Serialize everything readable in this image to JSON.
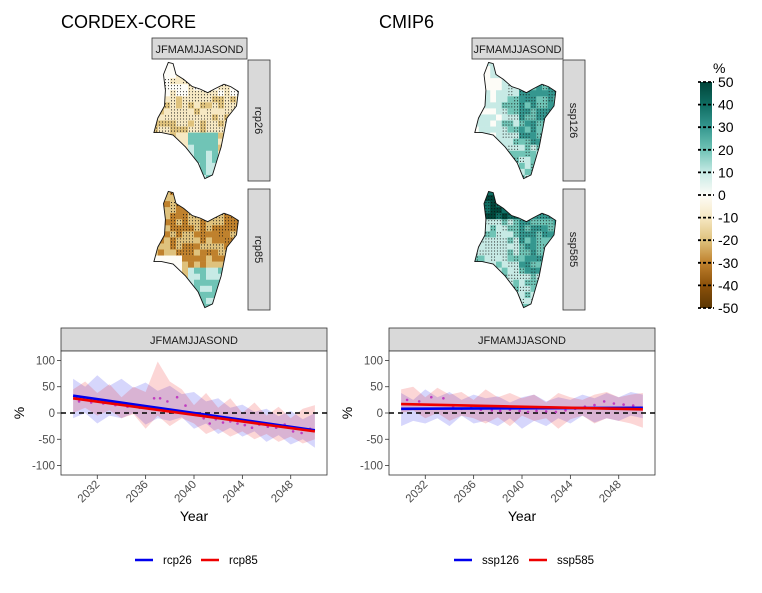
{
  "panel_titles": {
    "left": "CORDEX-CORE",
    "right": "CMIP6"
  },
  "map_panels": {
    "season_label": "JFMAMJJASOND",
    "cordex_scenarios": [
      "rcp26",
      "rcp85"
    ],
    "cmip6_scenarios": [
      "ssp126",
      "ssp585"
    ]
  },
  "colorbar": {
    "title": "%",
    "ticks": [
      "50",
      "40",
      "30",
      "20",
      "10",
      "0",
      "-10",
      "-20",
      "-30",
      "-40",
      "-50"
    ],
    "tick_values": [
      50,
      40,
      30,
      20,
      10,
      0,
      -10,
      -20,
      -30,
      -40,
      -50
    ],
    "colors_top_to_bottom": [
      "#01453a",
      "#0f6d62",
      "#35978f",
      "#70c4b6",
      "#c7eae5",
      "#fdfcf7",
      "#f6e8c3",
      "#dfc27d",
      "#bf812d",
      "#8c510a",
      "#5b3704"
    ]
  },
  "chart_data": [
    {
      "type": "line",
      "title": "CORDEX-CORE",
      "facet": "JFMAMJJASOND",
      "xlabel": "Year",
      "ylabel": "%",
      "xlim": [
        2029,
        2051
      ],
      "ylim": [
        -118,
        118
      ],
      "x_ticks": [
        2032,
        2036,
        2040,
        2044,
        2048
      ],
      "x_tick_labels": [
        "2032",
        "2036",
        "2040",
        "2044",
        "2048"
      ],
      "y_ticks": [
        100,
        50,
        0,
        -50,
        -100
      ],
      "y_tick_labels": [
        "100",
        "50",
        "0",
        "-50",
        "-100"
      ],
      "reference_line_y": 0,
      "legend_position": "bottom",
      "series": [
        {
          "name": "rcp26",
          "color": "#0000ee",
          "trend": [
            [
              2030,
              33
            ],
            [
              2050,
              -33
            ]
          ],
          "band_upper": [
            [
              2030,
              65
            ],
            [
              2031,
              50
            ],
            [
              2032,
              72
            ],
            [
              2033,
              52
            ],
            [
              2034,
              65
            ],
            [
              2035,
              48
            ],
            [
              2036,
              58
            ],
            [
              2037,
              42
            ],
            [
              2038,
              52
            ],
            [
              2039,
              36
            ],
            [
              2040,
              40
            ],
            [
              2041,
              22
            ],
            [
              2042,
              28
            ],
            [
              2043,
              10
            ],
            [
              2044,
              16
            ],
            [
              2045,
              2
            ],
            [
              2046,
              8
            ],
            [
              2047,
              -6
            ],
            [
              2048,
              4
            ],
            [
              2049,
              -12
            ],
            [
              2050,
              0
            ]
          ],
          "band_lower": [
            [
              2030,
              -10
            ],
            [
              2031,
              0
            ],
            [
              2032,
              -20
            ],
            [
              2033,
              -5
            ],
            [
              2034,
              -10
            ],
            [
              2035,
              0
            ],
            [
              2036,
              -22
            ],
            [
              2037,
              -10
            ],
            [
              2038,
              -15
            ],
            [
              2039,
              -8
            ],
            [
              2040,
              -30
            ],
            [
              2041,
              -20
            ],
            [
              2042,
              -40
            ],
            [
              2043,
              -28
            ],
            [
              2044,
              -45
            ],
            [
              2045,
              -35
            ],
            [
              2046,
              -55
            ],
            [
              2047,
              -42
            ],
            [
              2048,
              -60
            ],
            [
              2049,
              -50
            ],
            [
              2050,
              -66
            ]
          ]
        },
        {
          "name": "rcp85",
          "color": "#ee0000",
          "trend": [
            [
              2030,
              28
            ],
            [
              2050,
              -35
            ]
          ],
          "band_upper": [
            [
              2030,
              45
            ],
            [
              2031,
              60
            ],
            [
              2032,
              38
            ],
            [
              2033,
              55
            ],
            [
              2034,
              30
            ],
            [
              2035,
              50
            ],
            [
              2036,
              40
            ],
            [
              2037,
              98
            ],
            [
              2038,
              60
            ],
            [
              2039,
              45
            ],
            [
              2040,
              15
            ],
            [
              2041,
              38
            ],
            [
              2042,
              10
            ],
            [
              2043,
              28
            ],
            [
              2044,
              0
            ],
            [
              2045,
              20
            ],
            [
              2046,
              -5
            ],
            [
              2047,
              12
            ],
            [
              2048,
              -10
            ],
            [
              2049,
              8
            ],
            [
              2050,
              15
            ]
          ],
          "band_lower": [
            [
              2030,
              0
            ],
            [
              2031,
              10
            ],
            [
              2032,
              -5
            ],
            [
              2033,
              5
            ],
            [
              2034,
              -10
            ],
            [
              2035,
              -2
            ],
            [
              2036,
              -30
            ],
            [
              2037,
              -5
            ],
            [
              2038,
              -25
            ],
            [
              2039,
              -10
            ],
            [
              2040,
              -20
            ],
            [
              2041,
              -40
            ],
            [
              2042,
              -30
            ],
            [
              2043,
              -45
            ],
            [
              2044,
              -35
            ],
            [
              2045,
              -50
            ],
            [
              2046,
              -40
            ],
            [
              2047,
              -55
            ],
            [
              2048,
              -45
            ],
            [
              2049,
              -58
            ],
            [
              2050,
              -50
            ]
          ]
        }
      ],
      "points": [
        [
          2030.5,
          22
        ],
        [
          2031.5,
          20
        ],
        [
          2032.5,
          18
        ],
        [
          2033.5,
          15
        ],
        [
          2034.5,
          12
        ],
        [
          2035.5,
          10
        ],
        [
          2036.7,
          28
        ],
        [
          2037.2,
          28
        ],
        [
          2037.8,
          22
        ],
        [
          2038.6,
          30
        ],
        [
          2039.3,
          14
        ],
        [
          2040.2,
          -3
        ],
        [
          2040.8,
          -10
        ],
        [
          2041.3,
          -20
        ],
        [
          2041.8,
          -12
        ],
        [
          2042.4,
          -18
        ],
        [
          2043.0,
          -16
        ],
        [
          2043.6,
          -20
        ],
        [
          2044.2,
          -23
        ],
        [
          2044.8,
          -28
        ],
        [
          2045.4,
          -22
        ],
        [
          2046.1,
          -26
        ],
        [
          2046.8,
          -28
        ],
        [
          2047.5,
          -22
        ],
        [
          2048.2,
          -35
        ],
        [
          2048.9,
          -38
        ],
        [
          2049.6,
          -30
        ]
      ]
    },
    {
      "type": "line",
      "title": "CMIP6",
      "facet": "JFMAMJJASOND",
      "xlabel": "Year",
      "ylabel": "%",
      "xlim": [
        2029,
        2051
      ],
      "ylim": [
        -118,
        118
      ],
      "x_ticks": [
        2032,
        2036,
        2040,
        2044,
        2048
      ],
      "x_tick_labels": [
        "2032",
        "2036",
        "2040",
        "2044",
        "2048"
      ],
      "y_ticks": [
        100,
        50,
        0,
        -50,
        -100
      ],
      "y_tick_labels": [
        "100",
        "50",
        "0",
        "-50",
        "-100"
      ],
      "reference_line_y": 0,
      "legend_position": "bottom",
      "series": [
        {
          "name": "ssp126",
          "color": "#0000ee",
          "trend": [
            [
              2030,
              8
            ],
            [
              2050,
              10
            ]
          ],
          "band_upper": [
            [
              2030,
              38
            ],
            [
              2031,
              25
            ],
            [
              2032,
              45
            ],
            [
              2033,
              30
            ],
            [
              2034,
              40
            ],
            [
              2035,
              25
            ],
            [
              2036,
              35
            ],
            [
              2037,
              28
            ],
            [
              2038,
              32
            ],
            [
              2039,
              20
            ],
            [
              2040,
              30
            ],
            [
              2041,
              35
            ],
            [
              2042,
              22
            ],
            [
              2043,
              30
            ],
            [
              2044,
              25
            ],
            [
              2045,
              35
            ],
            [
              2046,
              28
            ],
            [
              2047,
              38
            ],
            [
              2048,
              30
            ],
            [
              2049,
              40
            ],
            [
              2050,
              35
            ]
          ],
          "band_lower": [
            [
              2030,
              -25
            ],
            [
              2031,
              -15
            ],
            [
              2032,
              -20
            ],
            [
              2033,
              -10
            ],
            [
              2034,
              -25
            ],
            [
              2035,
              -5
            ],
            [
              2036,
              -20
            ],
            [
              2037,
              -15
            ],
            [
              2038,
              -25
            ],
            [
              2039,
              -10
            ],
            [
              2040,
              -30
            ],
            [
              2041,
              -15
            ],
            [
              2042,
              -25
            ],
            [
              2043,
              -10
            ],
            [
              2044,
              -20
            ],
            [
              2045,
              -5
            ],
            [
              2046,
              -18
            ],
            [
              2047,
              -10
            ],
            [
              2048,
              -15
            ],
            [
              2049,
              -5
            ],
            [
              2050,
              -10
            ]
          ]
        },
        {
          "name": "ssp585",
          "color": "#ee0000",
          "trend": [
            [
              2030,
              17
            ],
            [
              2050,
              7
            ]
          ],
          "band_upper": [
            [
              2030,
              45
            ],
            [
              2031,
              50
            ],
            [
              2032,
              30
            ],
            [
              2033,
              48
            ],
            [
              2034,
              35
            ],
            [
              2035,
              40
            ],
            [
              2036,
              25
            ],
            [
              2037,
              45
            ],
            [
              2038,
              30
            ],
            [
              2039,
              38
            ],
            [
              2040,
              28
            ],
            [
              2041,
              35
            ],
            [
              2042,
              20
            ],
            [
              2043,
              38
            ],
            [
              2044,
              30
            ],
            [
              2045,
              25
            ],
            [
              2046,
              35
            ],
            [
              2047,
              40
            ],
            [
              2048,
              30
            ],
            [
              2049,
              35
            ],
            [
              2050,
              38
            ]
          ],
          "band_lower": [
            [
              2030,
              0
            ],
            [
              2031,
              5
            ],
            [
              2032,
              -10
            ],
            [
              2033,
              0
            ],
            [
              2034,
              -15
            ],
            [
              2035,
              -5
            ],
            [
              2036,
              -10
            ],
            [
              2037,
              -20
            ],
            [
              2038,
              -8
            ],
            [
              2039,
              -25
            ],
            [
              2040,
              -5
            ],
            [
              2041,
              -15
            ],
            [
              2042,
              -10
            ],
            [
              2043,
              -30
            ],
            [
              2044,
              -12
            ],
            [
              2045,
              -5
            ],
            [
              2046,
              -20
            ],
            [
              2047,
              -10
            ],
            [
              2048,
              -15
            ],
            [
              2049,
              -20
            ],
            [
              2050,
              -28
            ]
          ]
        }
      ],
      "points": [
        [
          2030.5,
          25
        ],
        [
          2031.5,
          22
        ],
        [
          2032.5,
          30
        ],
        [
          2033.5,
          28
        ],
        [
          2034.3,
          12
        ],
        [
          2035.0,
          8
        ],
        [
          2035.8,
          10
        ],
        [
          2036.6,
          6
        ],
        [
          2037.5,
          5
        ],
        [
          2038.2,
          4
        ],
        [
          2039.0,
          6
        ],
        [
          2039.8,
          4
        ],
        [
          2040.5,
          2
        ],
        [
          2041.2,
          4
        ],
        [
          2042.0,
          3
        ],
        [
          2042.8,
          2
        ],
        [
          2043.6,
          5
        ],
        [
          2044.4,
          8
        ],
        [
          2045.2,
          12
        ],
        [
          2046.0,
          15
        ],
        [
          2046.8,
          22
        ],
        [
          2047.6,
          18
        ],
        [
          2048.4,
          16
        ],
        [
          2049.2,
          14
        ],
        [
          2049.8,
          10
        ]
      ]
    }
  ]
}
